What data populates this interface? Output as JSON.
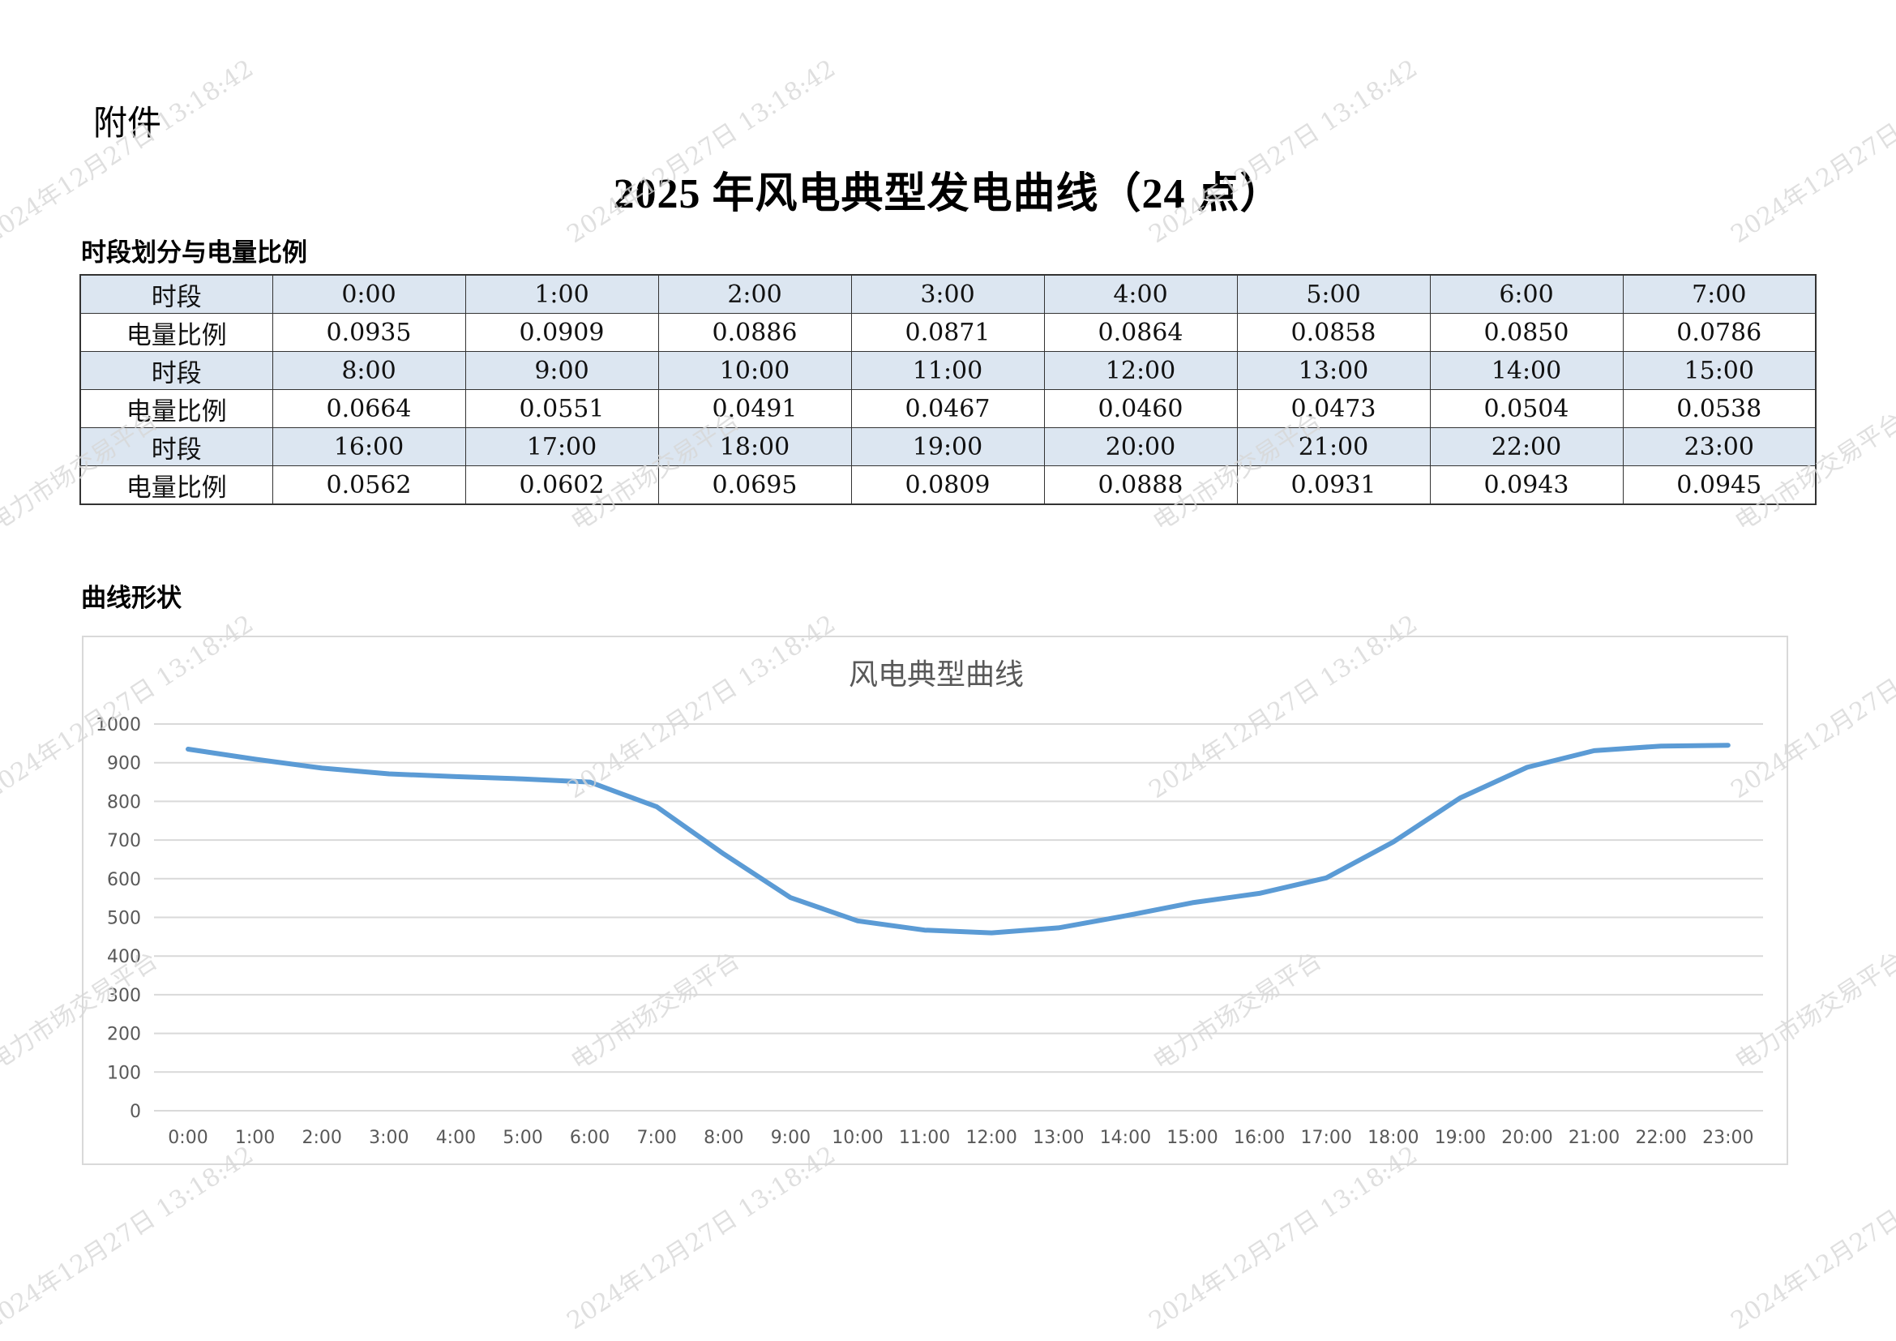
{
  "document": {
    "attachment_label": "附件",
    "title": "2025 年风电典型发电曲线（24 点）",
    "section_table_title": "时段划分与电量比例",
    "section_curve_title": "曲线形状"
  },
  "table": {
    "row_header_time": "时段",
    "row_header_ratio": "电量比例",
    "blocks": [
      {
        "times": [
          "0:00",
          "1:00",
          "2:00",
          "3:00",
          "4:00",
          "5:00",
          "6:00",
          "7:00"
        ],
        "ratios": [
          "0.0935",
          "0.0909",
          "0.0886",
          "0.0871",
          "0.0864",
          "0.0858",
          "0.0850",
          "0.0786"
        ]
      },
      {
        "times": [
          "8:00",
          "9:00",
          "10:00",
          "11:00",
          "12:00",
          "13:00",
          "14:00",
          "15:00"
        ],
        "ratios": [
          "0.0664",
          "0.0551",
          "0.0491",
          "0.0467",
          "0.0460",
          "0.0473",
          "0.0504",
          "0.0538"
        ]
      },
      {
        "times": [
          "16:00",
          "17:00",
          "18:00",
          "19:00",
          "20:00",
          "21:00",
          "22:00",
          "23:00"
        ],
        "ratios": [
          "0.0562",
          "0.0602",
          "0.0695",
          "0.0809",
          "0.0888",
          "0.0931",
          "0.0943",
          "0.0945"
        ]
      }
    ]
  },
  "chart_data": {
    "type": "line",
    "title": "风电典型曲线",
    "xlabel": "",
    "ylabel": "",
    "categories": [
      "0:00",
      "1:00",
      "2:00",
      "3:00",
      "4:00",
      "5:00",
      "6:00",
      "7:00",
      "8:00",
      "9:00",
      "10:00",
      "11:00",
      "12:00",
      "13:00",
      "14:00",
      "15:00",
      "16:00",
      "17:00",
      "18:00",
      "19:00",
      "20:00",
      "21:00",
      "22:00",
      "23:00"
    ],
    "series": [
      {
        "name": "风电典型曲线",
        "color": "#5b9bd5",
        "values": [
          935,
          909,
          886,
          871,
          864,
          858,
          850,
          786,
          664,
          551,
          491,
          467,
          460,
          473,
          504,
          538,
          562,
          602,
          695,
          809,
          888,
          931,
          943,
          945
        ]
      }
    ],
    "yticks": [
      0,
      100,
      200,
      300,
      400,
      500,
      600,
      700,
      800,
      900,
      1000
    ],
    "ylim": [
      0,
      1000
    ],
    "grid": true,
    "legend": "none"
  },
  "watermarks": {
    "timestamp": "2024年12月27日 13:18:42",
    "platform": "电力市场交易平台"
  },
  "colors": {
    "table_header_bg": "#dce6f1",
    "table_border": "#333333",
    "chart_line": "#5b9bd5",
    "gridline": "#d9d9d9",
    "axis_text": "#595959"
  }
}
